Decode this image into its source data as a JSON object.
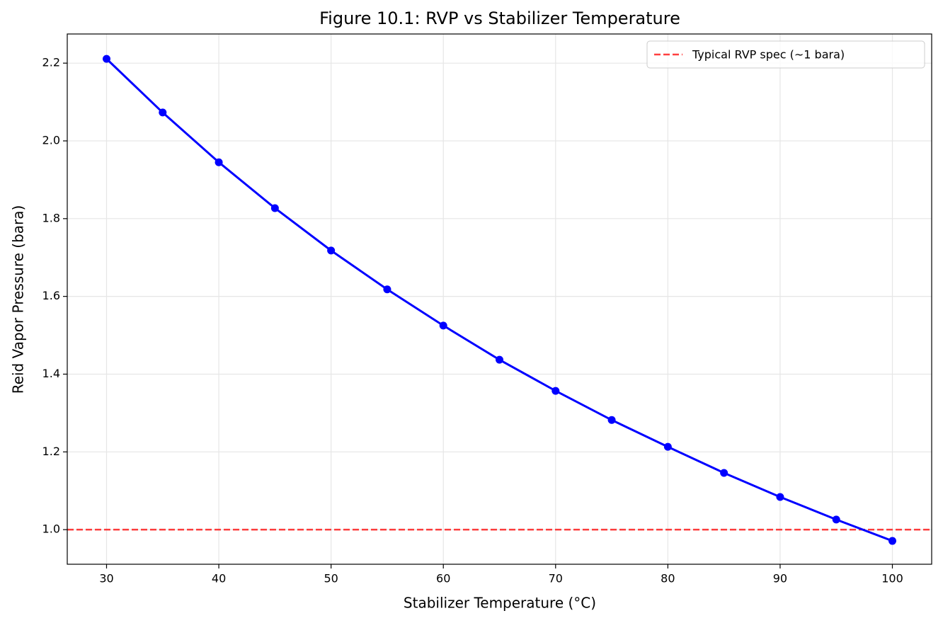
{
  "chart_data": {
    "type": "line",
    "title": "Figure 10.1: RVP vs Stabilizer Temperature",
    "x_label": "Stabilizer Temperature (°C)",
    "y_label": "Reid Vapor Pressure (bara)",
    "x": [
      30,
      35,
      40,
      45,
      50,
      55,
      60,
      65,
      70,
      75,
      80,
      85,
      90,
      95,
      100
    ],
    "values": [
      2.211,
      2.073,
      1.945,
      1.827,
      1.718,
      1.618,
      1.525,
      1.437,
      1.357,
      1.282,
      1.213,
      1.146,
      1.084,
      1.026,
      0.971
    ],
    "color": "#0000ff",
    "xlim": [
      26.5,
      103.5
    ],
    "ylim": [
      0.911,
      2.275
    ],
    "xticks": [
      30,
      40,
      50,
      60,
      70,
      80,
      90,
      100
    ],
    "yticks": [
      {
        "value": 1.0,
        "label": "1.0"
      },
      1.2,
      1.4,
      1.6,
      1.8,
      {
        "value": 2.0,
        "label": "2.0"
      },
      2.2
    ],
    "reference_lines": [
      {
        "value": 1.0,
        "name": "Typical RVP spec (~1 bara)",
        "color": "#ff0000"
      }
    ],
    "grid": true,
    "legend": "upper right"
  }
}
